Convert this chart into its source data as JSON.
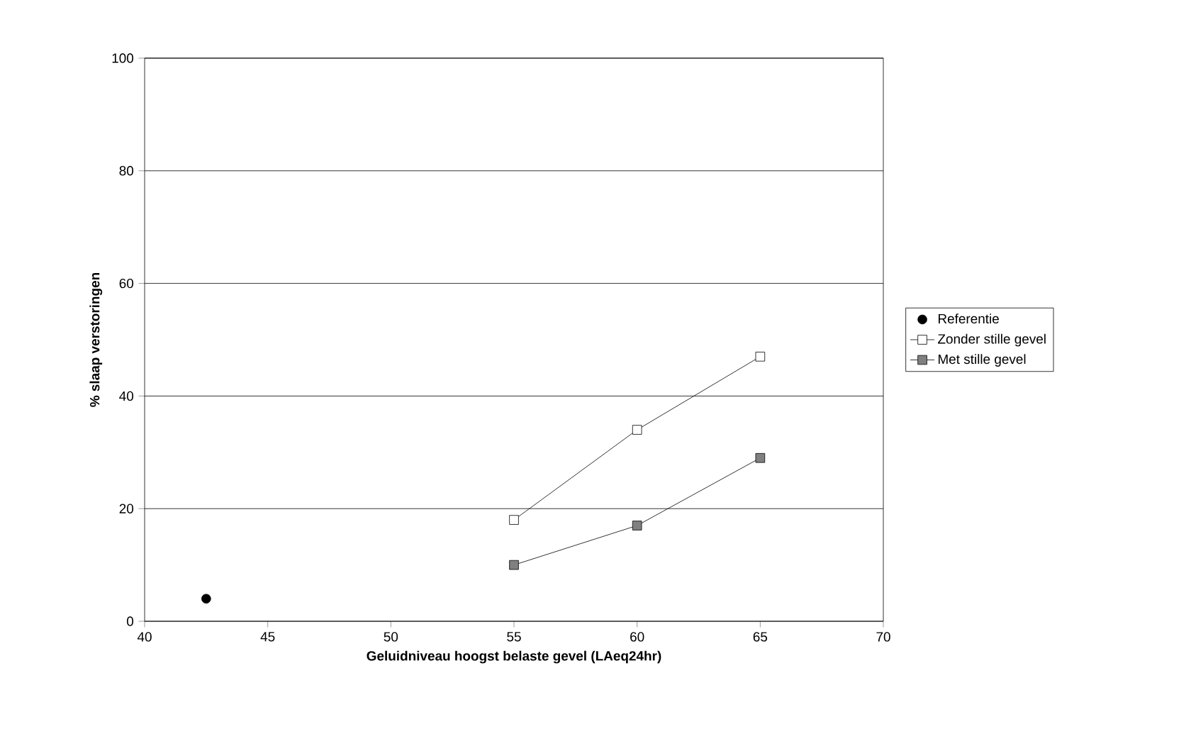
{
  "chart_data": {
    "type": "line",
    "xlabel": "Geluidniveau hoogst belaste gevel (LAeq24hr)",
    "ylabel": "% slaap verstoringen",
    "xlim": [
      40,
      70
    ],
    "xticks": [
      40,
      45,
      50,
      55,
      60,
      65,
      70
    ],
    "ylim": [
      0,
      100
    ],
    "yticks": [
      0,
      20,
      40,
      60,
      80,
      100
    ],
    "grid": "y",
    "legend": "right",
    "series": [
      {
        "name": "Referentie",
        "type": "scatter",
        "marker": "circle",
        "color": "#000000",
        "x": [
          42.5
        ],
        "values": [
          4
        ]
      },
      {
        "name": "Zonder stille gevel",
        "marker": "square",
        "color": "#ffffff",
        "x": [
          55,
          60,
          65
        ],
        "values": [
          18,
          34,
          47
        ]
      },
      {
        "name": "Met stille gevel",
        "marker": "square",
        "color": "#808080",
        "x": [
          55,
          60,
          65
        ],
        "values": [
          10,
          17,
          29
        ]
      }
    ]
  }
}
